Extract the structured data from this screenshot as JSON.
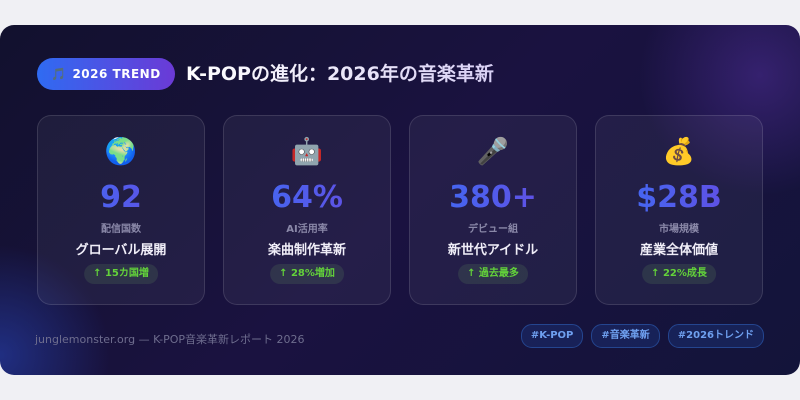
{
  "header": {
    "badge_icon": "🎵",
    "badge_label": "2026 TREND",
    "title": "K-POPの進化：2026年の音楽革新"
  },
  "cards": [
    {
      "icon": "🌍",
      "icon_name": "globe-icon",
      "value": "92",
      "label": "配信国数",
      "subtitle": "グローバル展開",
      "change": "↑ 15カ国増"
    },
    {
      "icon": "🤖",
      "icon_name": "robot-icon",
      "value": "64%",
      "label": "AI活用率",
      "subtitle": "楽曲制作革新",
      "change": "↑ 28%増加"
    },
    {
      "icon": "🎤",
      "icon_name": "microphone-icon",
      "value": "380+",
      "label": "デビュー組",
      "subtitle": "新世代アイドル",
      "change": "↑ 過去最多"
    },
    {
      "icon": "💰",
      "icon_name": "money-bag-icon",
      "value": "$28B",
      "label": "市場規模",
      "subtitle": "産業全体価値",
      "change": "↑ 22%成長"
    }
  ],
  "footer": {
    "source": "junglemonster.org — K-POP音楽革新レポート 2026",
    "tags": [
      "#K-POP",
      "#音楽革新",
      "#2026トレンド"
    ]
  },
  "colors": {
    "accent_blue": "#3a6ff5",
    "accent_purple": "#6a48e0",
    "positive": "#63d23a",
    "background": "#16123a"
  }
}
